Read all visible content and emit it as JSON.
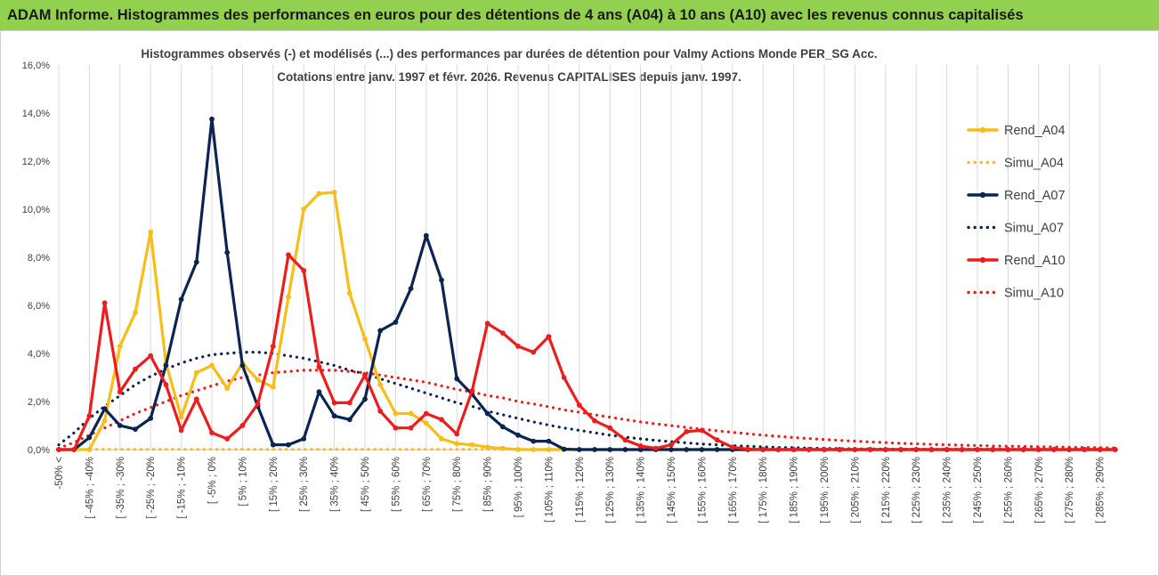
{
  "banner": {
    "title": "ADAM Informe. Histogrammes des performances en euros pour des détentions de 4 ans (A04) à 10 ans (A10) avec les revenus connus capitalisés"
  },
  "colors": {
    "banner_bg": "#92d050",
    "a04": "#f7be17",
    "a07": "#0c2451",
    "a10": "#ee1c1c",
    "grid": "#d9d9d9"
  },
  "chart_data": {
    "type": "line",
    "title_lines": [
      "Histogrammes observés (-) et modélisés (...) des performances par durées de détention pour Valmy Actions Monde PER_SG Acc.",
      "Cotations entre janv. 1997 et févr. 2026. Revenus CAPITALISES depuis janv. 1997."
    ],
    "xlabel": "",
    "ylabel": "",
    "ylim": [
      0,
      16
    ],
    "y_ticks": [
      0,
      2,
      4,
      6,
      8,
      10,
      12,
      14,
      16
    ],
    "y_tick_labels": [
      "0,0%",
      "2,0%",
      "4,0%",
      "6,0%",
      "8,0%",
      "10,0%",
      "12,0%",
      "14,0%",
      "16,0%"
    ],
    "x_tick_labels": [
      "-50% <",
      "[ -45% ; -40%",
      "[ -35% ; -30%",
      "[ -25% ; -20%",
      "[ -15% ; -10%",
      "[ -5% ; 0%",
      "[ 5% ; 10%",
      "[ 15% ; 20%",
      "[ 25% ; 30%",
      "[ 35% ; 40%",
      "[ 45% ; 50%",
      "[ 55% ; 60%",
      "[ 65% ; 70%",
      "[ 75% ; 80%",
      "[ 85% ; 90%",
      "[ 95% ; 100%",
      "[ 105% ; 110%",
      "[ 115% ; 120%",
      "[ 125% ; 130%",
      "[ 135% ; 140%",
      "[ 145% ; 150%",
      "[ 155% ; 160%",
      "[ 165% ; 170%",
      "[ 175% ; 180%",
      "[ 185% ; 190%",
      "[ 195% ; 200%",
      "[ 205% ; 210%",
      "[ 215% ; 220%",
      "[ 225% ; 230%",
      "[ 235% ; 240%",
      "[ 245% ; 250%",
      "[ 255% ; 260%",
      "[ 265% ; 270%",
      "[ 275% ; 280%",
      "[ 285% ; 290%"
    ],
    "n_points": 70,
    "grid": "vertical major gridlines",
    "legend_position": "right",
    "series": [
      {
        "name": "Rend_A04",
        "style": "solid-marker",
        "color": "#f7be17",
        "values": [
          0,
          0,
          0,
          1.2,
          4.3,
          5.7,
          9.05,
          3.6,
          1.35,
          3.2,
          3.5,
          2.55,
          3.6,
          2.9,
          2.6,
          6.35,
          10.0,
          10.65,
          10.7,
          6.5,
          4.6,
          2.7,
          1.5,
          1.5,
          1.1,
          0.45,
          0.25,
          0.2,
          0.1,
          0.05,
          0,
          0,
          0,
          0,
          0,
          0,
          0,
          0,
          0,
          0,
          0,
          0,
          0,
          0,
          0,
          0,
          0,
          0,
          0,
          0,
          0,
          0,
          0,
          0,
          0,
          0,
          0,
          0,
          0,
          0,
          0,
          0,
          0,
          0,
          0,
          0,
          0,
          0,
          0,
          0
        ]
      },
      {
        "name": "Simu_A04",
        "style": "dotted",
        "color": "#f7be17",
        "values": [
          0.01,
          0.01,
          0.01,
          0.01,
          0.01,
          0.01,
          0.01,
          0.01,
          0.01,
          0.01,
          0.01,
          0.01,
          0.01,
          0.01,
          0.01,
          0.01,
          0.01,
          0.01,
          0.01,
          0.01,
          0.01,
          0.01,
          0.01,
          0.01,
          0.01,
          0.01,
          0.01,
          0.01,
          0.01,
          0.01,
          0.01,
          0.01,
          0.01,
          0.01,
          0.01,
          0.01,
          0.01,
          0.01,
          0.01,
          0.01,
          0.01,
          0.01,
          0.01,
          0.01,
          0.01,
          0.01,
          0.01,
          0.01,
          0.01,
          0.01,
          0.01,
          0.01,
          0.01,
          0.01,
          0.01,
          0.01,
          0.01,
          0.01,
          0.01,
          0.01,
          0.01,
          0.01,
          0.01,
          0.01,
          0.01,
          0.01,
          0.01,
          0.01,
          0.01,
          0.01
        ]
      },
      {
        "name": "Rend_A07",
        "style": "solid-marker",
        "color": "#0c2451",
        "values": [
          0,
          0,
          0.5,
          1.7,
          1.0,
          0.85,
          1.3,
          3.5,
          6.25,
          7.8,
          13.75,
          8.2,
          3.5,
          1.8,
          0.2,
          0.2,
          0.45,
          2.4,
          1.4,
          1.25,
          2.1,
          4.95,
          5.3,
          6.7,
          8.9,
          7.05,
          2.95,
          2.3,
          1.5,
          0.95,
          0.6,
          0.35,
          0.35,
          0.02,
          0,
          0,
          0,
          0,
          0,
          0,
          0,
          0,
          0,
          0,
          0,
          0,
          0,
          0,
          0,
          0,
          0,
          0,
          0,
          0,
          0,
          0,
          0,
          0,
          0,
          0,
          0,
          0,
          0,
          0,
          0,
          0,
          0,
          0,
          0,
          0
        ]
      },
      {
        "name": "Simu_A07",
        "style": "dotted",
        "color": "#0c2451",
        "values": [
          0.2,
          0.7,
          1.3,
          1.8,
          2.25,
          2.7,
          3.05,
          3.35,
          3.6,
          3.8,
          3.95,
          4.0,
          4.05,
          4.05,
          4.0,
          3.9,
          3.8,
          3.65,
          3.5,
          3.3,
          3.15,
          2.95,
          2.75,
          2.55,
          2.35,
          2.15,
          1.95,
          1.8,
          1.6,
          1.45,
          1.3,
          1.15,
          1.02,
          0.9,
          0.8,
          0.7,
          0.6,
          0.52,
          0.45,
          0.38,
          0.33,
          0.28,
          0.23,
          0.2,
          0.16,
          0.14,
          0.11,
          0.09,
          0.08,
          0.06,
          0.05,
          0.04,
          0.03,
          0.03,
          0.02,
          0.02,
          0.02,
          0.01,
          0.01,
          0.01,
          0.01,
          0.01,
          0.01,
          0.01,
          0.01,
          0.01,
          0.01,
          0.01,
          0.01,
          0.01
        ]
      },
      {
        "name": "Rend_A10",
        "style": "solid-marker",
        "color": "#ee1c1c",
        "values": [
          0,
          0,
          1.4,
          6.1,
          2.4,
          3.35,
          3.9,
          2.7,
          0.8,
          2.1,
          0.7,
          0.45,
          1.0,
          1.9,
          4.3,
          8.1,
          7.45,
          3.45,
          1.95,
          1.95,
          3.1,
          1.6,
          0.9,
          0.9,
          1.5,
          1.25,
          0.65,
          2.45,
          5.25,
          4.85,
          4.3,
          4.05,
          4.7,
          3.0,
          1.85,
          1.2,
          0.9,
          0.4,
          0.15,
          0.05,
          0.2,
          0.75,
          0.8,
          0.4,
          0.1,
          0.02,
          0,
          0,
          0,
          0,
          0,
          0,
          0,
          0,
          0,
          0,
          0,
          0,
          0,
          0,
          0,
          0,
          0,
          0,
          0,
          0,
          0,
          0,
          0,
          0
        ]
      },
      {
        "name": "Simu_A10",
        "style": "dotted",
        "color": "#ee1c1c",
        "values": [
          0.05,
          0.3,
          0.6,
          0.9,
          1.2,
          1.5,
          1.75,
          2.0,
          2.25,
          2.45,
          2.65,
          2.85,
          3.0,
          3.1,
          3.2,
          3.25,
          3.3,
          3.3,
          3.3,
          3.25,
          3.2,
          3.1,
          3.0,
          2.9,
          2.8,
          2.65,
          2.5,
          2.4,
          2.25,
          2.15,
          2.0,
          1.9,
          1.78,
          1.65,
          1.55,
          1.45,
          1.35,
          1.25,
          1.15,
          1.07,
          1.0,
          0.92,
          0.85,
          0.78,
          0.72,
          0.66,
          0.6,
          0.55,
          0.5,
          0.46,
          0.42,
          0.38,
          0.35,
          0.32,
          0.29,
          0.26,
          0.24,
          0.22,
          0.2,
          0.18,
          0.17,
          0.15,
          0.14,
          0.13,
          0.12,
          0.11,
          0.1,
          0.09,
          0.08,
          0.07
        ]
      }
    ]
  }
}
